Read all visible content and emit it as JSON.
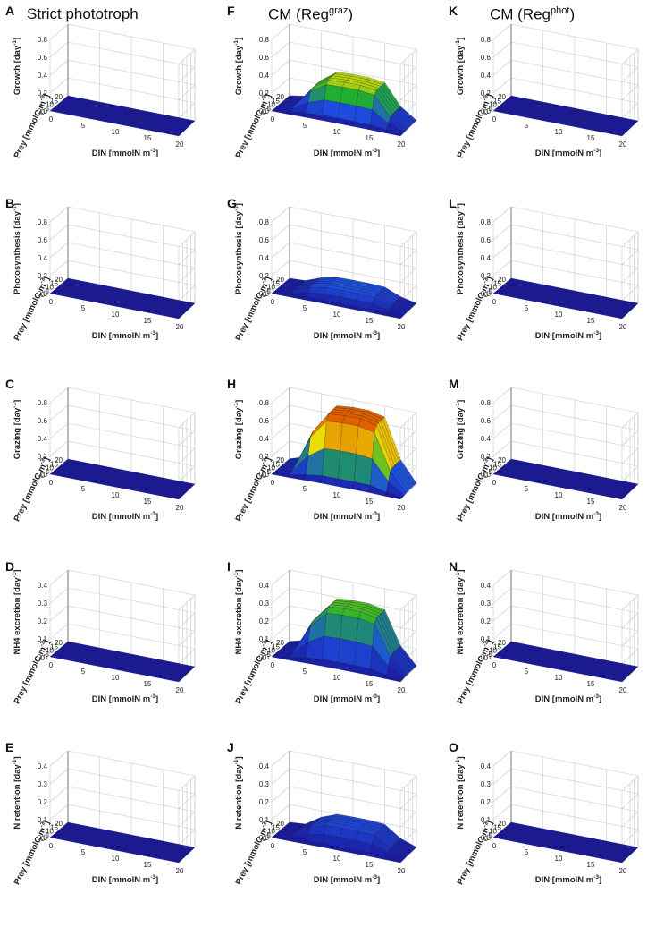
{
  "column_titles": [
    {
      "text": "Strict phototroph",
      "sup": ""
    },
    {
      "text": "CM (Reg",
      "sup": "graz"
    },
    {
      "text": "CM (Reg",
      "sup": "phot"
    }
  ],
  "axis_labels": {
    "x": "DIN [mmolN m",
    "x_sup": "-3",
    "y": "Prey [mmolC m",
    "y_sup": "-3"
  },
  "x_ticks": [
    "0",
    "5",
    "10",
    "15",
    "20"
  ],
  "y_ticks": [
    "0",
    "5",
    "10",
    "15",
    "20"
  ],
  "chart_data": [
    {
      "panel": "A",
      "type": "surface",
      "zlabel": "Growth [day",
      "zlim": [
        0,
        0.8
      ],
      "z_ticks": [
        "0.0",
        "0.2",
        "0.4",
        "0.6",
        "0.8"
      ],
      "shape": "flat",
      "peak": 0.0
    },
    {
      "panel": "B",
      "type": "surface",
      "zlabel": "Photosynthesis [day",
      "zlim": [
        0,
        0.8
      ],
      "z_ticks": [
        "0.0",
        "0.2",
        "0.4",
        "0.6",
        "0.8"
      ],
      "shape": "flat",
      "peak": 0.0
    },
    {
      "panel": "C",
      "type": "surface",
      "zlabel": "Grazing [day",
      "zlim": [
        0,
        0.8
      ],
      "z_ticks": [
        "0.0",
        "0.2",
        "0.4",
        "0.6",
        "0.8"
      ],
      "shape": "flat",
      "peak": 0.0
    },
    {
      "panel": "D",
      "type": "surface",
      "zlabel": "NH4 excretion [day",
      "zlim": [
        0,
        0.4
      ],
      "z_ticks": [
        "0.0",
        "0.1",
        "0.2",
        "0.3",
        "0.4"
      ],
      "shape": "flat",
      "peak": 0.0
    },
    {
      "panel": "E",
      "type": "surface",
      "zlabel": "N retention [day",
      "zlim": [
        0,
        0.4
      ],
      "z_ticks": [
        "0.0",
        "0.1",
        "0.2",
        "0.3",
        "0.4"
      ],
      "shape": "flat",
      "peak": 0.0
    },
    {
      "panel": "F",
      "type": "surface",
      "zlabel": "Growth [day",
      "zlim": [
        0,
        0.8
      ],
      "z_ticks": [
        "0.0",
        "0.2",
        "0.4",
        "0.6",
        "0.8"
      ],
      "shape": "plateau",
      "peak": 0.38
    },
    {
      "panel": "G",
      "type": "surface",
      "zlabel": "Photosynthesis [day",
      "zlim": [
        0,
        0.8
      ],
      "z_ticks": [
        "0.0",
        "0.2",
        "0.4",
        "0.6",
        "0.8"
      ],
      "shape": "plateau",
      "peak": 0.12
    },
    {
      "panel": "H",
      "type": "surface",
      "zlabel": "Grazing [day",
      "zlim": [
        0,
        0.8
      ],
      "z_ticks": [
        "0.0",
        "0.2",
        "0.4",
        "0.6",
        "0.8"
      ],
      "shape": "plateau",
      "peak": 0.72
    },
    {
      "panel": "I",
      "type": "surface",
      "zlabel": "NH4 excretion [day",
      "zlim": [
        0,
        0.4
      ],
      "z_ticks": [
        "0.0",
        "0.1",
        "0.2",
        "0.3",
        "0.4"
      ],
      "shape": "plateau",
      "peak": 0.3
    },
    {
      "panel": "J",
      "type": "surface",
      "zlabel": "N retention [day",
      "zlim": [
        0,
        0.4
      ],
      "z_ticks": [
        "0.0",
        "0.1",
        "0.2",
        "0.3",
        "0.4"
      ],
      "shape": "plateau",
      "peak": 0.1
    },
    {
      "panel": "K",
      "type": "surface",
      "zlabel": "Growth [day",
      "zlim": [
        0,
        0.8
      ],
      "z_ticks": [
        "0.0",
        "0.2",
        "0.4",
        "0.6",
        "0.8"
      ],
      "shape": "flat",
      "peak": 0.0
    },
    {
      "panel": "L",
      "type": "surface",
      "zlabel": "Photosynthesis [day",
      "zlim": [
        0,
        0.8
      ],
      "z_ticks": [
        "0.0",
        "0.2",
        "0.4",
        "0.6",
        "0.8"
      ],
      "shape": "flat",
      "peak": 0.0
    },
    {
      "panel": "M",
      "type": "surface",
      "zlabel": "Grazing [day",
      "zlim": [
        0,
        0.8
      ],
      "z_ticks": [
        "0.0",
        "0.2",
        "0.4",
        "0.6",
        "0.8"
      ],
      "shape": "flat",
      "peak": 0.0
    },
    {
      "panel": "N",
      "type": "surface",
      "zlabel": "NH4 excretion [day",
      "zlim": [
        0,
        0.4
      ],
      "z_ticks": [
        "0.0",
        "0.1",
        "0.2",
        "0.3",
        "0.4"
      ],
      "shape": "flat",
      "peak": 0.0
    },
    {
      "panel": "O",
      "type": "surface",
      "zlabel": "N retention [day",
      "zlim": [
        0,
        0.4
      ],
      "z_ticks": [
        "0.0",
        "0.1",
        "0.2",
        "0.3",
        "0.4"
      ],
      "shape": "flat",
      "peak": 0.0
    }
  ],
  "colors": {
    "low": "#1a1aa0",
    "mid1": "#1e4fe0",
    "mid2": "#20b030",
    "mid3": "#f0e000",
    "high": "#e06000"
  }
}
